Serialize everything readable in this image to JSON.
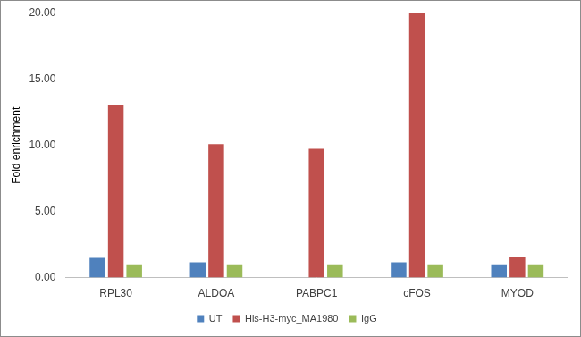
{
  "chart_data": {
    "type": "bar",
    "y_label": "Fold enrichment",
    "categories": [
      "RPL30",
      "ALDOA",
      "PABPC1",
      "cFOS",
      "MYOD"
    ],
    "series": [
      {
        "name": "UT",
        "color": "#4F81BD",
        "values": [
          1.5,
          1.15,
          0,
          1.15,
          1.0
        ]
      },
      {
        "name": "His-H3-myc_MA1980",
        "color": "#C0504D",
        "values": [
          13.1,
          10.1,
          9.75,
          20.0,
          1.6
        ]
      },
      {
        "name": "IgG",
        "color": "#9BBB59",
        "values": [
          1.0,
          1.0,
          1.0,
          1.0,
          1.0
        ]
      }
    ],
    "ylim": [
      0,
      20
    ],
    "yticks": [
      {
        "value": 0,
        "label": "0.00"
      },
      {
        "value": 5,
        "label": "5.00"
      },
      {
        "value": 10,
        "label": "10.00"
      },
      {
        "value": 15,
        "label": "15.00"
      },
      {
        "value": 20,
        "label": "20.00"
      }
    ],
    "grid": false,
    "legend": "bottom"
  }
}
